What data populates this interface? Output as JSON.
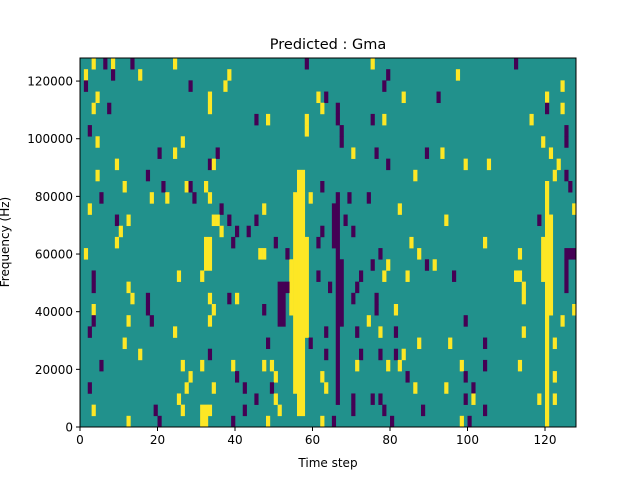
{
  "chart_data": {
    "type": "heatmap",
    "title": "Predicted : Gma",
    "xlabel": "Time step",
    "ylabel": "Frequency (Hz)",
    "xlim": [
      0,
      128
    ],
    "ylim": [
      0,
      128000
    ],
    "n_time_steps": 128,
    "n_freq_bins": 33,
    "xticks": [
      "0",
      "20",
      "40",
      "60",
      "80",
      "100",
      "120"
    ],
    "xtick_values": [
      0,
      20,
      40,
      60,
      80,
      100,
      120
    ],
    "yticks": [
      "0",
      "20000",
      "40000",
      "60000",
      "80000",
      "100000",
      "120000"
    ],
    "ytick_values": [
      0,
      20000,
      40000,
      60000,
      80000,
      100000,
      120000
    ],
    "colormap": {
      "0": "#440154",
      "1": "#21918c",
      "2": "#fde725"
    },
    "background_value": 1,
    "bands_note": "[t_start, t_end, bin_start, bin_end, value]",
    "bands": [
      [
        56,
        57,
        1,
        22,
        2
      ],
      [
        55,
        55,
        3,
        20,
        2
      ],
      [
        58,
        58,
        8,
        16,
        2
      ],
      [
        54,
        54,
        10,
        14,
        2
      ],
      [
        66,
        66,
        2,
        20,
        0
      ],
      [
        67,
        67,
        9,
        14,
        0
      ],
      [
        65,
        65,
        16,
        19,
        0
      ],
      [
        120,
        120,
        1,
        21,
        2
      ],
      [
        121,
        121,
        10,
        18,
        2
      ],
      [
        119,
        119,
        13,
        16,
        2
      ],
      [
        31,
        32,
        0,
        1,
        2
      ],
      [
        32,
        33,
        14,
        16,
        2
      ],
      [
        51,
        52,
        9,
        12,
        0
      ],
      [
        125,
        127,
        15,
        15,
        0
      ],
      [
        125,
        125,
        12,
        14,
        0
      ]
    ],
    "cells_note": "[time_step, freq_bin, value]",
    "cells": [
      [
        3,
        32,
        2
      ],
      [
        6,
        32,
        0
      ],
      [
        8,
        32,
        2
      ],
      [
        13,
        32,
        0
      ],
      [
        24,
        32,
        2
      ],
      [
        58,
        32,
        0
      ],
      [
        75,
        32,
        2
      ],
      [
        112,
        32,
        0
      ],
      [
        1,
        31,
        2
      ],
      [
        8,
        31,
        0
      ],
      [
        15,
        31,
        2
      ],
      [
        38,
        31,
        2
      ],
      [
        79,
        31,
        0
      ],
      [
        97,
        31,
        2
      ],
      [
        1,
        30,
        0
      ],
      [
        28,
        30,
        0
      ],
      [
        37,
        30,
        2
      ],
      [
        78,
        30,
        0
      ],
      [
        124,
        30,
        2
      ],
      [
        4,
        29,
        2
      ],
      [
        33,
        29,
        2
      ],
      [
        61,
        29,
        2
      ],
      [
        63,
        29,
        0
      ],
      [
        83,
        29,
        2
      ],
      [
        92,
        29,
        0
      ],
      [
        120,
        29,
        2
      ],
      [
        3,
        28,
        2
      ],
      [
        7,
        28,
        0
      ],
      [
        33,
        28,
        2
      ],
      [
        62,
        28,
        2
      ],
      [
        66,
        28,
        0
      ],
      [
        120,
        28,
        0
      ],
      [
        124,
        28,
        2
      ],
      [
        45,
        27,
        0
      ],
      [
        48,
        27,
        2
      ],
      [
        66,
        27,
        0
      ],
      [
        58,
        27,
        2
      ],
      [
        75,
        27,
        0
      ],
      [
        78,
        27,
        2
      ],
      [
        116,
        27,
        2
      ],
      [
        2,
        26,
        0
      ],
      [
        58,
        26,
        2
      ],
      [
        67,
        26,
        0
      ],
      [
        125,
        26,
        0
      ],
      [
        4,
        25,
        2
      ],
      [
        26,
        25,
        2
      ],
      [
        67,
        25,
        0
      ],
      [
        119,
        25,
        2
      ],
      [
        125,
        25,
        0
      ],
      [
        20,
        24,
        0
      ],
      [
        24,
        24,
        2
      ],
      [
        35,
        24,
        0
      ],
      [
        70,
        24,
        2
      ],
      [
        76,
        24,
        0
      ],
      [
        89,
        24,
        0
      ],
      [
        93,
        24,
        2
      ],
      [
        121,
        24,
        2
      ],
      [
        9,
        23,
        2
      ],
      [
        33,
        23,
        0
      ],
      [
        34,
        23,
        2
      ],
      [
        79,
        23,
        0
      ],
      [
        99,
        23,
        2
      ],
      [
        105,
        23,
        2
      ],
      [
        123,
        23,
        2
      ],
      [
        4,
        22,
        2
      ],
      [
        17,
        22,
        0
      ],
      [
        86,
        22,
        2
      ],
      [
        122,
        22,
        2
      ],
      [
        125,
        22,
        0
      ],
      [
        11,
        21,
        2
      ],
      [
        21,
        21,
        0
      ],
      [
        27,
        21,
        2
      ],
      [
        32,
        21,
        2
      ],
      [
        28,
        21,
        0
      ],
      [
        62,
        21,
        0
      ],
      [
        126,
        21,
        0
      ],
      [
        5,
        20,
        0
      ],
      [
        18,
        20,
        2
      ],
      [
        22,
        20,
        2
      ],
      [
        29,
        20,
        0
      ],
      [
        33,
        20,
        2
      ],
      [
        59,
        20,
        2
      ],
      [
        69,
        20,
        0
      ],
      [
        74,
        20,
        0
      ],
      [
        2,
        19,
        2
      ],
      [
        36,
        19,
        0
      ],
      [
        47,
        19,
        2
      ],
      [
        82,
        19,
        2
      ],
      [
        127,
        19,
        2
      ],
      [
        9,
        18,
        0
      ],
      [
        12,
        18,
        2
      ],
      [
        34,
        18,
        2
      ],
      [
        38,
        18,
        0
      ],
      [
        35,
        18,
        2
      ],
      [
        45,
        18,
        0
      ],
      [
        68,
        18,
        0
      ],
      [
        94,
        18,
        2
      ],
      [
        118,
        18,
        0
      ],
      [
        10,
        17,
        2
      ],
      [
        36,
        17,
        2
      ],
      [
        40,
        17,
        0
      ],
      [
        43,
        17,
        0
      ],
      [
        62,
        17,
        0
      ],
      [
        70,
        17,
        0
      ],
      [
        9,
        16,
        2
      ],
      [
        39,
        16,
        0
      ],
      [
        50,
        16,
        0
      ],
      [
        61,
        16,
        0
      ],
      [
        85,
        16,
        2
      ],
      [
        104,
        16,
        2
      ],
      [
        1,
        15,
        2
      ],
      [
        46,
        15,
        2
      ],
      [
        47,
        15,
        2
      ],
      [
        53,
        15,
        0
      ],
      [
        77,
        15,
        0
      ],
      [
        87,
        15,
        2
      ],
      [
        113,
        15,
        2
      ],
      [
        75,
        14,
        0
      ],
      [
        79,
        14,
        2
      ],
      [
        91,
        14,
        2
      ],
      [
        89,
        14,
        0
      ],
      [
        3,
        13,
        0
      ],
      [
        25,
        13,
        2
      ],
      [
        31,
        13,
        2
      ],
      [
        61,
        13,
        0
      ],
      [
        72,
        13,
        0
      ],
      [
        78,
        13,
        2
      ],
      [
        84,
        13,
        2
      ],
      [
        96,
        13,
        0
      ],
      [
        112,
        13,
        2
      ],
      [
        113,
        13,
        2
      ],
      [
        3,
        12,
        0
      ],
      [
        12,
        12,
        2
      ],
      [
        53,
        12,
        0
      ],
      [
        64,
        12,
        0
      ],
      [
        71,
        12,
        0
      ],
      [
        114,
        12,
        2
      ],
      [
        13,
        11,
        2
      ],
      [
        17,
        11,
        0
      ],
      [
        33,
        11,
        2
      ],
      [
        38,
        11,
        0
      ],
      [
        40,
        11,
        2
      ],
      [
        70,
        11,
        0
      ],
      [
        76,
        11,
        0
      ],
      [
        114,
        11,
        2
      ],
      [
        3,
        10,
        2
      ],
      [
        17,
        10,
        0
      ],
      [
        34,
        10,
        2
      ],
      [
        47,
        10,
        0
      ],
      [
        76,
        10,
        0
      ],
      [
        81,
        10,
        2
      ],
      [
        127,
        10,
        2
      ],
      [
        3,
        9,
        0
      ],
      [
        12,
        9,
        2
      ],
      [
        18,
        9,
        0
      ],
      [
        33,
        9,
        2
      ],
      [
        74,
        9,
        2
      ],
      [
        99,
        9,
        0
      ],
      [
        124,
        9,
        2
      ],
      [
        2,
        8,
        0
      ],
      [
        24,
        8,
        2
      ],
      [
        63,
        8,
        0
      ],
      [
        71,
        8,
        0
      ],
      [
        77,
        8,
        2
      ],
      [
        81,
        8,
        0
      ],
      [
        114,
        8,
        2
      ],
      [
        11,
        7,
        2
      ],
      [
        48,
        7,
        0
      ],
      [
        59,
        7,
        0
      ],
      [
        87,
        7,
        2
      ],
      [
        95,
        7,
        2
      ],
      [
        104,
        7,
        0
      ],
      [
        122,
        7,
        2
      ],
      [
        15,
        6,
        2
      ],
      [
        33,
        6,
        0
      ],
      [
        63,
        6,
        0
      ],
      [
        72,
        6,
        0
      ],
      [
        77,
        6,
        0
      ],
      [
        81,
        6,
        0
      ],
      [
        83,
        6,
        2
      ],
      [
        5,
        5,
        0
      ],
      [
        26,
        5,
        2
      ],
      [
        31,
        5,
        2
      ],
      [
        39,
        5,
        2
      ],
      [
        47,
        5,
        2
      ],
      [
        49,
        5,
        2
      ],
      [
        71,
        5,
        2
      ],
      [
        79,
        5,
        2
      ],
      [
        82,
        5,
        2
      ],
      [
        98,
        5,
        2
      ],
      [
        104,
        5,
        0
      ],
      [
        113,
        5,
        2
      ],
      [
        28,
        4,
        2
      ],
      [
        40,
        4,
        0
      ],
      [
        50,
        4,
        2
      ],
      [
        62,
        4,
        2
      ],
      [
        84,
        4,
        0
      ],
      [
        99,
        4,
        0
      ],
      [
        122,
        4,
        2
      ],
      [
        2,
        3,
        0
      ],
      [
        27,
        3,
        2
      ],
      [
        34,
        3,
        2
      ],
      [
        42,
        3,
        0
      ],
      [
        49,
        3,
        0
      ],
      [
        63,
        3,
        2
      ],
      [
        86,
        3,
        2
      ],
      [
        94,
        3,
        2
      ],
      [
        101,
        3,
        0
      ],
      [
        25,
        2,
        2
      ],
      [
        45,
        2,
        0
      ],
      [
        50,
        2,
        2
      ],
      [
        70,
        2,
        0
      ],
      [
        75,
        2,
        0
      ],
      [
        77,
        2,
        0
      ],
      [
        101,
        2,
        2
      ],
      [
        99,
        2,
        0
      ],
      [
        118,
        2,
        2
      ],
      [
        122,
        2,
        2
      ],
      [
        3,
        1,
        2
      ],
      [
        19,
        1,
        0
      ],
      [
        26,
        1,
        2
      ],
      [
        33,
        1,
        2
      ],
      [
        42,
        1,
        0
      ],
      [
        51,
        1,
        2
      ],
      [
        70,
        1,
        0
      ],
      [
        78,
        1,
        0
      ],
      [
        88,
        1,
        0
      ],
      [
        104,
        1,
        0
      ],
      [
        12,
        0,
        2
      ],
      [
        20,
        0,
        0
      ],
      [
        39,
        0,
        0
      ],
      [
        48,
        0,
        2
      ],
      [
        62,
        0,
        2
      ],
      [
        65,
        0,
        0
      ],
      [
        80,
        0,
        0
      ],
      [
        98,
        0,
        2
      ],
      [
        100,
        0,
        0
      ],
      [
        120,
        0,
        2
      ]
    ]
  }
}
